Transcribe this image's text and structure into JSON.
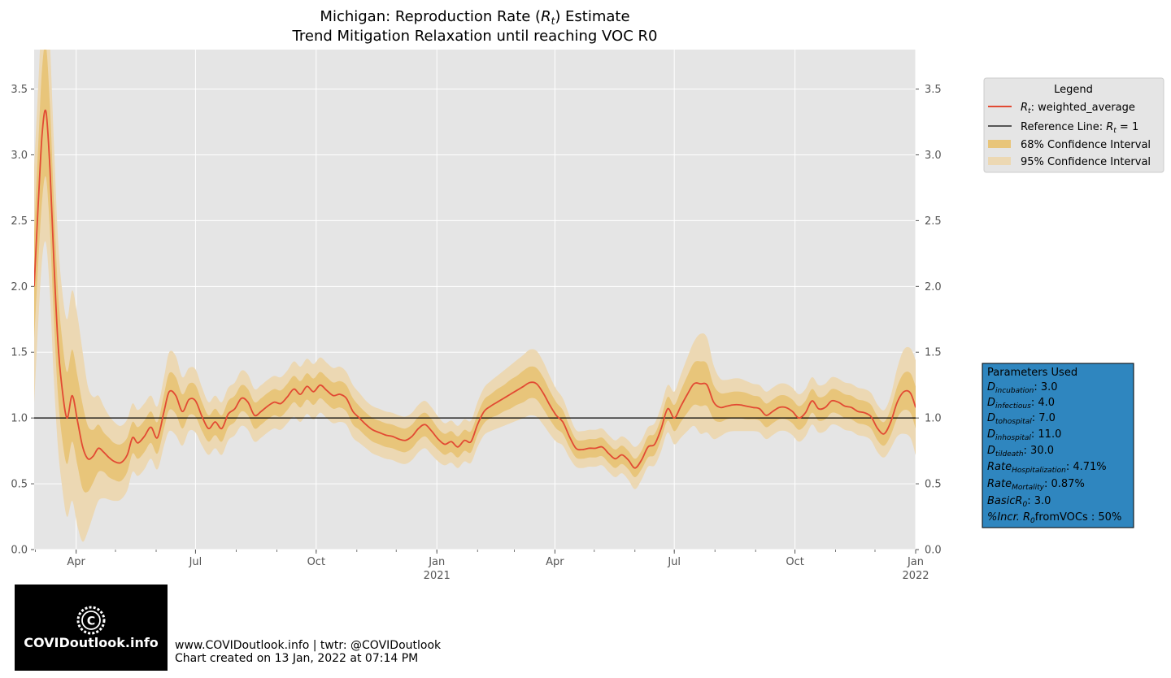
{
  "chart_data": {
    "type": "line",
    "title": "Michigan: Reproduction Rate ($R_t$) Estimate",
    "title_display": "Michigan: Reproduction Rate (Rt) Estimate",
    "subtitle": "Trend Mitigation Relaxation until reaching VOC R0",
    "xlim": [
      "2020-02-29",
      "2022-01-01"
    ],
    "ylim": [
      0,
      3.8
    ],
    "yticks": [
      "0.0",
      "0.5",
      "1.0",
      "1.5",
      "2.0",
      "2.5",
      "3.0",
      "3.5"
    ],
    "xticks": [
      {
        "date": "2020-04-01",
        "label": "Apr",
        "year": ""
      },
      {
        "date": "2020-07-01",
        "label": "Jul",
        "year": ""
      },
      {
        "date": "2020-10-01",
        "label": "Oct",
        "year": ""
      },
      {
        "date": "2021-01-01",
        "label": "Jan",
        "year": "2021"
      },
      {
        "date": "2021-04-01",
        "label": "Apr",
        "year": ""
      },
      {
        "date": "2021-07-01",
        "label": "Jul",
        "year": ""
      },
      {
        "date": "2021-10-01",
        "label": "Oct",
        "year": ""
      },
      {
        "date": "2022-01-01",
        "label": "Jan",
        "year": "2022"
      }
    ],
    "grid": true,
    "reference_line": 1.0,
    "legend_placement": "outside-right",
    "colors": {
      "line": "#e24a33",
      "ci68": "#e8c57a",
      "ci95": "#ecd8b3",
      "reference": "#000000",
      "plot_bg": "#e5e5e5",
      "grid": "#ffffff"
    },
    "legend": {
      "title": "Legend",
      "entries": [
        "$R_t$: weighted_average",
        "Reference Line: $R_t=1$",
        "68% Confidence Interval",
        "95% Confidence Interval"
      ]
    },
    "series": [
      {
        "name": "$R_t$: weighted_average",
        "points": [
          [
            "2020-02-29",
            2.0,
            0.4,
            0.9
          ],
          [
            "2020-03-03",
            2.6,
            0.45,
            0.9
          ],
          [
            "2020-03-06",
            3.15,
            0.5,
            0.95
          ],
          [
            "2020-03-09",
            3.33,
            0.5,
            1.0
          ],
          [
            "2020-03-12",
            2.9,
            0.48,
            0.95
          ],
          [
            "2020-03-15",
            2.2,
            0.45,
            0.9
          ],
          [
            "2020-03-18",
            1.6,
            0.4,
            0.8
          ],
          [
            "2020-03-21",
            1.25,
            0.38,
            0.75
          ],
          [
            "2020-03-25",
            1.0,
            0.35,
            0.75
          ],
          [
            "2020-03-29",
            1.17,
            0.35,
            0.8
          ],
          [
            "2020-04-02",
            0.98,
            0.34,
            0.8
          ],
          [
            "2020-04-06",
            0.78,
            0.32,
            0.72
          ],
          [
            "2020-04-10",
            0.69,
            0.25,
            0.55
          ],
          [
            "2020-04-14",
            0.71,
            0.2,
            0.45
          ],
          [
            "2020-04-18",
            0.77,
            0.18,
            0.4
          ],
          [
            "2020-04-22",
            0.74,
            0.15,
            0.35
          ],
          [
            "2020-04-26",
            0.7,
            0.15,
            0.32
          ],
          [
            "2020-04-30",
            0.67,
            0.14,
            0.3
          ],
          [
            "2020-05-05",
            0.66,
            0.14,
            0.28
          ],
          [
            "2020-05-10",
            0.72,
            0.13,
            0.27
          ],
          [
            "2020-05-14",
            0.85,
            0.12,
            0.26
          ],
          [
            "2020-05-18",
            0.81,
            0.12,
            0.25
          ],
          [
            "2020-05-23",
            0.86,
            0.12,
            0.25
          ],
          [
            "2020-05-28",
            0.93,
            0.12,
            0.24
          ],
          [
            "2020-06-02",
            0.85,
            0.12,
            0.24
          ],
          [
            "2020-06-07",
            1.05,
            0.13,
            0.26
          ],
          [
            "2020-06-11",
            1.2,
            0.14,
            0.3
          ],
          [
            "2020-06-16",
            1.17,
            0.14,
            0.3
          ],
          [
            "2020-06-21",
            1.05,
            0.13,
            0.26
          ],
          [
            "2020-06-26",
            1.14,
            0.12,
            0.24
          ],
          [
            "2020-07-01",
            1.13,
            0.12,
            0.24
          ],
          [
            "2020-07-06",
            1.01,
            0.11,
            0.22
          ],
          [
            "2020-07-11",
            0.92,
            0.1,
            0.2
          ],
          [
            "2020-07-16",
            0.97,
            0.1,
            0.2
          ],
          [
            "2020-07-21",
            0.92,
            0.1,
            0.2
          ],
          [
            "2020-07-26",
            1.03,
            0.1,
            0.2
          ],
          [
            "2020-07-31",
            1.07,
            0.1,
            0.2
          ],
          [
            "2020-08-05",
            1.15,
            0.1,
            0.21
          ],
          [
            "2020-08-10",
            1.12,
            0.1,
            0.21
          ],
          [
            "2020-08-15",
            1.02,
            0.1,
            0.2
          ],
          [
            "2020-08-20",
            1.05,
            0.1,
            0.2
          ],
          [
            "2020-08-25",
            1.09,
            0.1,
            0.2
          ],
          [
            "2020-08-30",
            1.12,
            0.1,
            0.2
          ],
          [
            "2020-09-04",
            1.11,
            0.1,
            0.2
          ],
          [
            "2020-09-09",
            1.16,
            0.1,
            0.2
          ],
          [
            "2020-09-14",
            1.22,
            0.1,
            0.21
          ],
          [
            "2020-09-19",
            1.18,
            0.1,
            0.21
          ],
          [
            "2020-09-24",
            1.24,
            0.1,
            0.21
          ],
          [
            "2020-09-29",
            1.2,
            0.1,
            0.21
          ],
          [
            "2020-10-04",
            1.25,
            0.1,
            0.21
          ],
          [
            "2020-10-09",
            1.21,
            0.1,
            0.21
          ],
          [
            "2020-10-14",
            1.17,
            0.1,
            0.21
          ],
          [
            "2020-10-19",
            1.18,
            0.1,
            0.21
          ],
          [
            "2020-10-24",
            1.15,
            0.1,
            0.2
          ],
          [
            "2020-10-29",
            1.05,
            0.1,
            0.2
          ],
          [
            "2020-11-03",
            1.0,
            0.09,
            0.19
          ],
          [
            "2020-11-08",
            0.95,
            0.09,
            0.18
          ],
          [
            "2020-11-13",
            0.91,
            0.09,
            0.18
          ],
          [
            "2020-11-18",
            0.89,
            0.09,
            0.18
          ],
          [
            "2020-11-23",
            0.87,
            0.09,
            0.18
          ],
          [
            "2020-11-28",
            0.86,
            0.09,
            0.18
          ],
          [
            "2020-12-03",
            0.84,
            0.09,
            0.18
          ],
          [
            "2020-12-08",
            0.83,
            0.09,
            0.18
          ],
          [
            "2020-12-13",
            0.86,
            0.09,
            0.18
          ],
          [
            "2020-12-18",
            0.92,
            0.09,
            0.18
          ],
          [
            "2020-12-23",
            0.95,
            0.09,
            0.18
          ],
          [
            "2020-12-28",
            0.9,
            0.09,
            0.18
          ],
          [
            "2021-01-02",
            0.84,
            0.08,
            0.17
          ],
          [
            "2021-01-07",
            0.8,
            0.08,
            0.16
          ],
          [
            "2021-01-12",
            0.82,
            0.08,
            0.16
          ],
          [
            "2021-01-17",
            0.78,
            0.08,
            0.16
          ],
          [
            "2021-01-22",
            0.83,
            0.08,
            0.16
          ],
          [
            "2021-01-27",
            0.82,
            0.08,
            0.16
          ],
          [
            "2021-02-01",
            0.95,
            0.08,
            0.17
          ],
          [
            "2021-02-06",
            1.05,
            0.09,
            0.18
          ],
          [
            "2021-02-11",
            1.09,
            0.09,
            0.19
          ],
          [
            "2021-02-16",
            1.12,
            0.1,
            0.2
          ],
          [
            "2021-02-21",
            1.15,
            0.1,
            0.21
          ],
          [
            "2021-02-26",
            1.18,
            0.11,
            0.22
          ],
          [
            "2021-03-03",
            1.21,
            0.11,
            0.23
          ],
          [
            "2021-03-08",
            1.24,
            0.12,
            0.24
          ],
          [
            "2021-03-13",
            1.27,
            0.12,
            0.25
          ],
          [
            "2021-03-18",
            1.26,
            0.12,
            0.25
          ],
          [
            "2021-03-23",
            1.19,
            0.12,
            0.24
          ],
          [
            "2021-03-28",
            1.1,
            0.11,
            0.22
          ],
          [
            "2021-04-02",
            1.02,
            0.1,
            0.2
          ],
          [
            "2021-04-07",
            0.97,
            0.09,
            0.18
          ],
          [
            "2021-04-12",
            0.86,
            0.08,
            0.16
          ],
          [
            "2021-04-17",
            0.77,
            0.07,
            0.14
          ],
          [
            "2021-04-22",
            0.76,
            0.07,
            0.14
          ],
          [
            "2021-04-27",
            0.77,
            0.07,
            0.14
          ],
          [
            "2021-05-02",
            0.77,
            0.07,
            0.14
          ],
          [
            "2021-05-07",
            0.78,
            0.07,
            0.14
          ],
          [
            "2021-05-12",
            0.73,
            0.07,
            0.14
          ],
          [
            "2021-05-17",
            0.69,
            0.07,
            0.14
          ],
          [
            "2021-05-22",
            0.72,
            0.07,
            0.14
          ],
          [
            "2021-05-27",
            0.68,
            0.07,
            0.15
          ],
          [
            "2021-06-01",
            0.62,
            0.07,
            0.16
          ],
          [
            "2021-06-06",
            0.68,
            0.07,
            0.15
          ],
          [
            "2021-06-11",
            0.78,
            0.08,
            0.15
          ],
          [
            "2021-06-16",
            0.8,
            0.08,
            0.16
          ],
          [
            "2021-06-21",
            0.92,
            0.08,
            0.17
          ],
          [
            "2021-06-26",
            1.07,
            0.09,
            0.18
          ],
          [
            "2021-07-01",
            1.0,
            0.1,
            0.2
          ],
          [
            "2021-07-06",
            1.09,
            0.12,
            0.24
          ],
          [
            "2021-07-11",
            1.18,
            0.14,
            0.28
          ],
          [
            "2021-07-16",
            1.26,
            0.16,
            0.32
          ],
          [
            "2021-07-21",
            1.26,
            0.17,
            0.38
          ],
          [
            "2021-07-26",
            1.25,
            0.16,
            0.36
          ],
          [
            "2021-07-31",
            1.12,
            0.13,
            0.28
          ],
          [
            "2021-08-05",
            1.08,
            0.11,
            0.22
          ],
          [
            "2021-08-10",
            1.09,
            0.1,
            0.2
          ],
          [
            "2021-08-15",
            1.1,
            0.1,
            0.2
          ],
          [
            "2021-08-20",
            1.1,
            0.1,
            0.2
          ],
          [
            "2021-08-25",
            1.09,
            0.1,
            0.19
          ],
          [
            "2021-08-30",
            1.08,
            0.09,
            0.18
          ],
          [
            "2021-09-04",
            1.07,
            0.09,
            0.18
          ],
          [
            "2021-09-09",
            1.02,
            0.09,
            0.18
          ],
          [
            "2021-09-14",
            1.05,
            0.09,
            0.18
          ],
          [
            "2021-09-19",
            1.08,
            0.09,
            0.18
          ],
          [
            "2021-09-24",
            1.08,
            0.09,
            0.18
          ],
          [
            "2021-09-29",
            1.05,
            0.09,
            0.18
          ],
          [
            "2021-10-04",
            1.0,
            0.09,
            0.18
          ],
          [
            "2021-10-09",
            1.04,
            0.09,
            0.18
          ],
          [
            "2021-10-14",
            1.13,
            0.09,
            0.18
          ],
          [
            "2021-10-19",
            1.07,
            0.09,
            0.18
          ],
          [
            "2021-10-24",
            1.08,
            0.09,
            0.18
          ],
          [
            "2021-10-29",
            1.13,
            0.09,
            0.18
          ],
          [
            "2021-11-03",
            1.12,
            0.09,
            0.18
          ],
          [
            "2021-11-08",
            1.09,
            0.09,
            0.18
          ],
          [
            "2021-11-13",
            1.08,
            0.09,
            0.18
          ],
          [
            "2021-11-18",
            1.05,
            0.09,
            0.18
          ],
          [
            "2021-11-23",
            1.04,
            0.09,
            0.18
          ],
          [
            "2021-11-28",
            1.01,
            0.09,
            0.18
          ],
          [
            "2021-12-03",
            0.92,
            0.09,
            0.18
          ],
          [
            "2021-12-08",
            0.88,
            0.09,
            0.18
          ],
          [
            "2021-12-13",
            0.97,
            0.1,
            0.2
          ],
          [
            "2021-12-18",
            1.12,
            0.12,
            0.26
          ],
          [
            "2021-12-23",
            1.2,
            0.14,
            0.32
          ],
          [
            "2021-12-28",
            1.19,
            0.15,
            0.34
          ],
          [
            "2022-01-01",
            1.08,
            0.16,
            0.36
          ]
        ]
      }
    ]
  },
  "parameters_box": {
    "title": "Parameters Used",
    "rows": [
      {
        "main": "D",
        "sub": "incubation",
        "value": ": 3.0"
      },
      {
        "main": "D",
        "sub": "infectious",
        "value": ": 4.0"
      },
      {
        "main": "D",
        "sub": "tohospital",
        "value": ": 7.0"
      },
      {
        "main": "D",
        "sub": "inhospital",
        "value": ": 11.0"
      },
      {
        "main": "D",
        "sub": "tildeath",
        "value": ": 30.0"
      },
      {
        "main": "Rate",
        "sub": "Hospitalization",
        "value": ": 4.71%"
      },
      {
        "main": "Rate",
        "sub": "Mortality",
        "value": ": 0.87%"
      },
      {
        "main": "BasicR",
        "sub": "0",
        "value": ": 3.0"
      },
      {
        "main": "%Incr. R",
        "sub": "0",
        "value": "fromVOCs : 50%"
      }
    ],
    "bg_color": "#2f86bf"
  },
  "footer": {
    "line1": "www.COVIDoutlook.info | twtr: @COVIDoutlook",
    "line2": "Chart created on 13 Jan, 2022 at 07:14 PM"
  },
  "logo": {
    "text": "COVIDoutlook.info",
    "icon": "covid-c-gear-icon"
  }
}
